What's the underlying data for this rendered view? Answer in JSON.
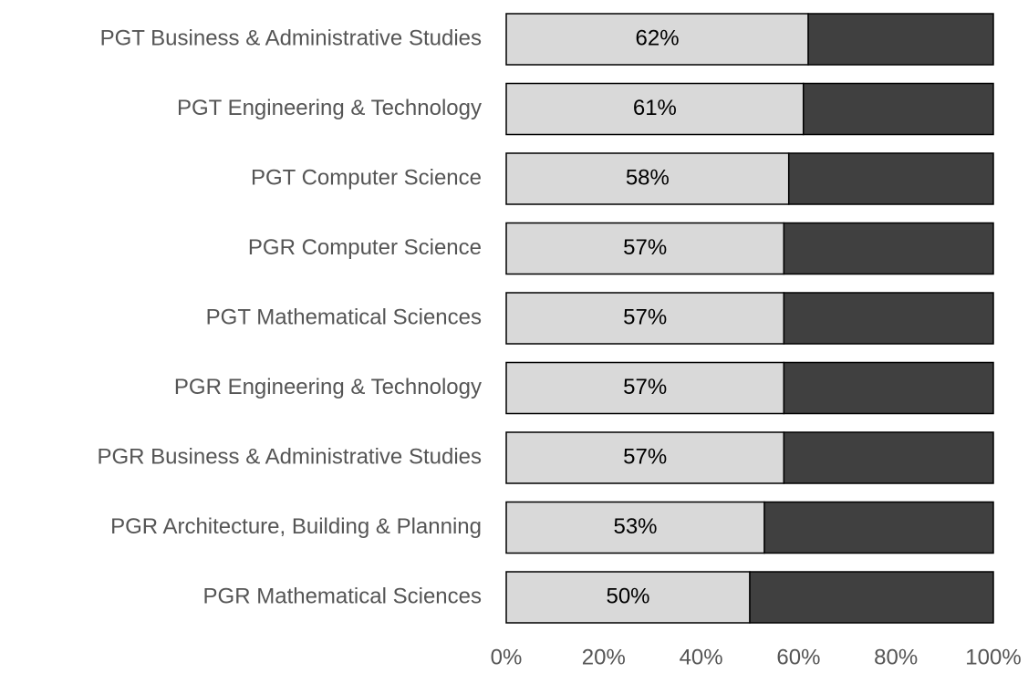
{
  "chart_data": {
    "type": "stacked_barh",
    "categories": [
      "PGT Business & Administrative Studies",
      "PGT Engineering & Technology",
      "PGT Computer Science",
      "PGR Computer Science",
      "PGT Mathematical Sciences",
      "PGR Engineering & Technology",
      "PGR Business & Administrative Studies",
      "PGR Architecture, Building & Planning",
      "PGR Mathematical Sciences"
    ],
    "series": [
      {
        "color": "#d9d9d9",
        "values": [
          62,
          61,
          58,
          57,
          57,
          57,
          57,
          53,
          50
        ],
        "value_labels": [
          "62%",
          "61%",
          "58%",
          "57%",
          "57%",
          "57%",
          "57%",
          "53%",
          "50%"
        ]
      },
      {
        "color": "#404040",
        "values": [
          38,
          39,
          42,
          43,
          43,
          43,
          43,
          47,
          50
        ]
      }
    ],
    "xlim": [
      0,
      100
    ],
    "xticks": [
      {
        "value": 0,
        "label": "0%"
      },
      {
        "value": 20,
        "label": "20%"
      },
      {
        "value": 40,
        "label": "40%"
      },
      {
        "value": 60,
        "label": "60%"
      },
      {
        "value": 80,
        "label": "80%"
      },
      {
        "value": 100,
        "label": "100%"
      }
    ]
  }
}
